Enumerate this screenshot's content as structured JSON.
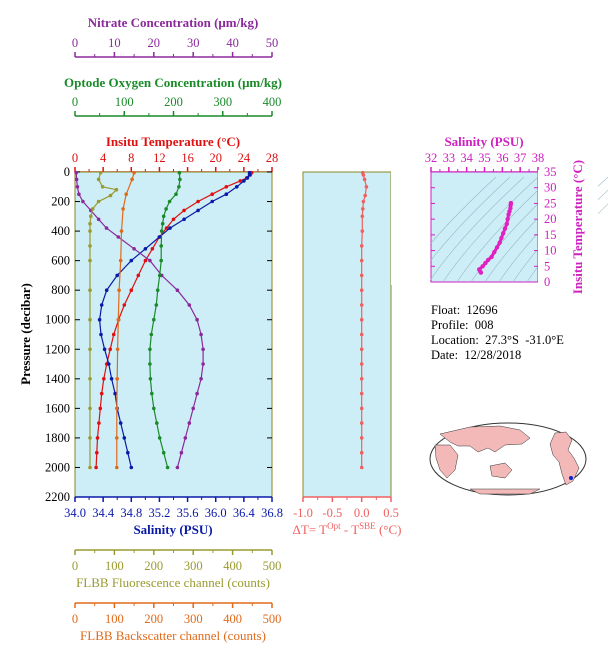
{
  "axes": {
    "nitrate": {
      "label": "Nitrate Concentration (μm/kg)",
      "ticks": [
        "0",
        "10",
        "20",
        "30",
        "40",
        "50"
      ],
      "color": "#8b2a9b"
    },
    "oxygen": {
      "label": "Optode Oxygen Concentration (μm/kg)",
      "ticks": [
        "0",
        "100",
        "200",
        "300",
        "400"
      ],
      "color": "#1a8a2a"
    },
    "temperature": {
      "label": "Insitu Temperature (°C)",
      "ticks": [
        "0",
        "4",
        "8",
        "12",
        "16",
        "20",
        "24",
        "28"
      ],
      "color": "#e01010"
    },
    "salinity": {
      "label": "Salinity (PSU)",
      "ticks": [
        "34.0",
        "34.4",
        "34.8",
        "35.2",
        "35.6",
        "36.0",
        "36.4",
        "36.8"
      ],
      "color": "#0a1aa8"
    },
    "pressure": {
      "label": "Pressure (decibar)",
      "ticks": [
        "0",
        "200",
        "400",
        "600",
        "800",
        "1000",
        "1200",
        "1400",
        "1600",
        "1800",
        "2000",
        "2200"
      ]
    },
    "fluorescence": {
      "label": "FLBB Fluorescence channel (counts)",
      "ticks": [
        "0",
        "100",
        "200",
        "300",
        "400",
        "500"
      ],
      "color": "#9a9a30"
    },
    "backscatter": {
      "label": "FLBB Backscatter channel (counts)",
      "ticks": [
        "0",
        "100",
        "200",
        "300",
        "400",
        "500"
      ],
      "color": "#e06a1a"
    },
    "dt": {
      "label_prefix": "ΔT= T",
      "sup1": "Opt",
      "label_mid": " - T",
      "sup2": "SBE",
      "label_suffix": " (°C)",
      "ticks": [
        "-1.0",
        "-0.5",
        "0.0",
        "0.5"
      ],
      "color": "#f06060"
    },
    "ts_salinity": {
      "label": "Salinity (PSU)",
      "ticks": [
        "32",
        "33",
        "34",
        "35",
        "36",
        "37",
        "38"
      ],
      "color": "#d020c0"
    },
    "ts_temperature": {
      "label": "Insitu Temperature (°C)",
      "ticks": [
        "0",
        "5",
        "10",
        "15",
        "20",
        "25",
        "30",
        "35"
      ],
      "color": "#d020c0"
    }
  },
  "info": {
    "float": "Float:  12696",
    "profile": "Profile:  008",
    "location": "Location:  27.3°S  -31.0°E",
    "date": "Date:  12/28/2018"
  },
  "colors": {
    "panel_bg": "#cdeef6",
    "frame": "#888822"
  },
  "chart_data": [
    {
      "type": "line",
      "pressure_range": [
        0,
        2200
      ],
      "series": [
        {
          "name": "Insitu Temperature",
          "units": "°C",
          "x_range": [
            0,
            28
          ],
          "points": [
            [
              25.1,
              5
            ],
            [
              24.9,
              20
            ],
            [
              24.4,
              40
            ],
            [
              23.5,
              60
            ],
            [
              21.5,
              100
            ],
            [
              19.5,
              150
            ],
            [
              17.5,
              200
            ],
            [
              15.5,
              260
            ],
            [
              14,
              320
            ],
            [
              13,
              380
            ],
            [
              12,
              440
            ],
            [
              11,
              520
            ],
            [
              10,
              600
            ],
            [
              9,
              700
            ],
            [
              8,
              800
            ],
            [
              7,
              900
            ],
            [
              6.2,
              1000
            ],
            [
              5.5,
              1100
            ],
            [
              5,
              1200
            ],
            [
              4.5,
              1300
            ],
            [
              4.1,
              1400
            ],
            [
              3.8,
              1500
            ],
            [
              3.6,
              1600
            ],
            [
              3.4,
              1700
            ],
            [
              3.2,
              1800
            ],
            [
              3.1,
              1900
            ],
            [
              3,
              2000
            ]
          ]
        },
        {
          "name": "Salinity",
          "units": "PSU",
          "x_range": [
            34.0,
            36.8
          ],
          "points": [
            [
              36.48,
              5
            ],
            [
              36.48,
              20
            ],
            [
              36.45,
              40
            ],
            [
              36.4,
              60
            ],
            [
              36.3,
              100
            ],
            [
              36.15,
              150
            ],
            [
              35.95,
              200
            ],
            [
              35.75,
              260
            ],
            [
              35.55,
              320
            ],
            [
              35.35,
              380
            ],
            [
              35.2,
              440
            ],
            [
              35.0,
              520
            ],
            [
              34.8,
              600
            ],
            [
              34.6,
              700
            ],
            [
              34.45,
              800
            ],
            [
              34.38,
              900
            ],
            [
              34.35,
              1000
            ],
            [
              34.37,
              1100
            ],
            [
              34.42,
              1200
            ],
            [
              34.48,
              1300
            ],
            [
              34.52,
              1400
            ],
            [
              34.57,
              1500
            ],
            [
              34.6,
              1600
            ],
            [
              34.65,
              1700
            ],
            [
              34.7,
              1800
            ],
            [
              34.75,
              1900
            ],
            [
              34.8,
              2000
            ]
          ]
        },
        {
          "name": "Nitrate Concentration",
          "units": "μm/kg",
          "x_range": [
            0,
            50
          ],
          "points": [
            [
              0.3,
              5
            ],
            [
              0.4,
              50
            ],
            [
              0.6,
              100
            ],
            [
              1,
              150
            ],
            [
              2,
              200
            ],
            [
              4,
              260
            ],
            [
              6,
              320
            ],
            [
              8,
              380
            ],
            [
              11,
              440
            ],
            [
              15,
              520
            ],
            [
              19,
              600
            ],
            [
              22,
              700
            ],
            [
              26,
              800
            ],
            [
              29,
              900
            ],
            [
              31,
              1000
            ],
            [
              32,
              1100
            ],
            [
              32.5,
              1200
            ],
            [
              32.5,
              1300
            ],
            [
              32,
              1400
            ],
            [
              31,
              1500
            ],
            [
              30,
              1600
            ],
            [
              29,
              1700
            ],
            [
              28,
              1800
            ],
            [
              27,
              1900
            ],
            [
              26,
              2000
            ]
          ]
        },
        {
          "name": "Optode Oxygen Concentration",
          "units": "μm/kg",
          "x_range": [
            0,
            400
          ],
          "points": [
            [
              212,
              5
            ],
            [
              213,
              50
            ],
            [
              211,
              100
            ],
            [
              205,
              150
            ],
            [
              192,
              200
            ],
            [
              185,
              250
            ],
            [
              180,
              300
            ],
            [
              178,
              350
            ],
            [
              176,
              400
            ],
            [
              175,
              500
            ],
            [
              175,
              600
            ],
            [
              172,
              700
            ],
            [
              168,
              800
            ],
            [
              165,
              900
            ],
            [
              160,
              1000
            ],
            [
              155,
              1100
            ],
            [
              152,
              1200
            ],
            [
              152,
              1300
            ],
            [
              153,
              1400
            ],
            [
              156,
              1500
            ],
            [
              160,
              1600
            ],
            [
              166,
              1700
            ],
            [
              172,
              1800
            ],
            [
              180,
              1900
            ],
            [
              188,
              2000
            ]
          ]
        },
        {
          "name": "FLBB Fluorescence channel",
          "units": "counts",
          "x_range": [
            0,
            500
          ],
          "points": [
            [
              65,
              5
            ],
            [
              60,
              50
            ],
            [
              70,
              100
            ],
            [
              105,
              120
            ],
            [
              90,
              160
            ],
            [
              60,
              200
            ],
            [
              45,
              250
            ],
            [
              40,
              300
            ],
            [
              38,
              350
            ],
            [
              38,
              400
            ],
            [
              38,
              500
            ],
            [
              38,
              600
            ],
            [
              38,
              800
            ],
            [
              38,
              1000
            ],
            [
              38,
              1200
            ],
            [
              38,
              1400
            ],
            [
              38,
              1600
            ],
            [
              38,
              1800
            ],
            [
              38,
              2000
            ]
          ]
        },
        {
          "name": "FLBB Backscatter channel",
          "units": "counts",
          "x_range": [
            0,
            500
          ],
          "points": [
            [
              150,
              5
            ],
            [
              145,
              50
            ],
            [
              130,
              150
            ],
            [
              122,
              250
            ],
            [
              118,
              400
            ],
            [
              116,
              600
            ],
            [
              112,
              800
            ],
            [
              110,
              1000
            ],
            [
              108,
              1200
            ],
            [
              107,
              1400
            ],
            [
              106,
              1600
            ],
            [
              106,
              1800
            ],
            [
              106,
              2000
            ]
          ]
        }
      ]
    },
    {
      "type": "scatter",
      "xlabel": "ΔT= T^Opt - T^SBE (°C)",
      "ylabel": "Pressure (decibar)",
      "xlim": [
        -1.0,
        0.5
      ],
      "ylim": [
        0,
        2200
      ],
      "points": [
        [
          0.02,
          5
        ],
        [
          0.03,
          20
        ],
        [
          0.05,
          50
        ],
        [
          0.08,
          100
        ],
        [
          0.06,
          160
        ],
        [
          0.03,
          200
        ],
        [
          0.02,
          250
        ],
        [
          0.01,
          300
        ],
        [
          0.01,
          400
        ],
        [
          0.0,
          500
        ],
        [
          0.0,
          600
        ],
        [
          0.0,
          700
        ],
        [
          0.0,
          800
        ],
        [
          0.0,
          900
        ],
        [
          0.0,
          1000
        ],
        [
          0.0,
          1100
        ],
        [
          0.0,
          1200
        ],
        [
          0.0,
          1300
        ],
        [
          0.0,
          1400
        ],
        [
          0.0,
          1500
        ],
        [
          0.0,
          1600
        ],
        [
          0.0,
          1700
        ],
        [
          0.0,
          1800
        ],
        [
          0.0,
          1900
        ],
        [
          0.0,
          2000
        ]
      ]
    },
    {
      "type": "scatter",
      "xlabel": "Salinity (PSU)",
      "ylabel": "Insitu Temperature (°C)",
      "xlim": [
        32,
        38
      ],
      "ylim": [
        0,
        35
      ],
      "points": [
        [
          34.8,
          3
        ],
        [
          34.75,
          3.5
        ],
        [
          34.7,
          4
        ],
        [
          34.9,
          5
        ],
        [
          35.05,
          6
        ],
        [
          35.2,
          7
        ],
        [
          35.4,
          8
        ],
        [
          35.55,
          9.5
        ],
        [
          35.7,
          11
        ],
        [
          35.85,
          12.5
        ],
        [
          35.95,
          14
        ],
        [
          36.05,
          15.5
        ],
        [
          36.15,
          17
        ],
        [
          36.25,
          18.5
        ],
        [
          36.3,
          20
        ],
        [
          36.35,
          21.5
        ],
        [
          36.4,
          22.5
        ],
        [
          36.45,
          23.5
        ],
        [
          36.47,
          24.5
        ],
        [
          36.48,
          25.1
        ]
      ]
    }
  ]
}
